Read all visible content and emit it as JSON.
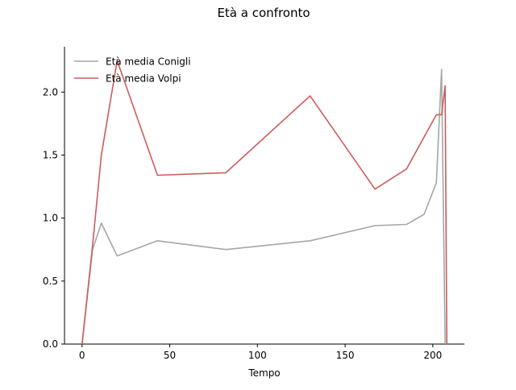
{
  "chart_data": {
    "type": "line",
    "title": "Età a confronto",
    "xlabel": "Tempo",
    "ylabel": "",
    "xlim": [
      -10,
      218
    ],
    "ylim": [
      0,
      2.36
    ],
    "x_ticks": [
      0,
      50,
      100,
      150,
      200
    ],
    "y_ticks": [
      0.0,
      0.5,
      1.0,
      1.5,
      2.0
    ],
    "x_tick_labels": [
      "0",
      "50",
      "100",
      "150",
      "200"
    ],
    "y_tick_labels": [
      "0.0",
      "0.5",
      "1.0",
      "1.5",
      "2.0"
    ],
    "grid": false,
    "legend_position": "top-left",
    "series": [
      {
        "name": "Età media Conigli",
        "color": "#a6a6a6",
        "points": [
          [
            0,
            0.0
          ],
          [
            6,
            0.75
          ],
          [
            11,
            0.96
          ],
          [
            20,
            0.7
          ],
          [
            43,
            0.82
          ],
          [
            82,
            0.75
          ],
          [
            130,
            0.82
          ],
          [
            167,
            0.94
          ],
          [
            185,
            0.95
          ],
          [
            195,
            1.03
          ],
          [
            202,
            1.28
          ],
          [
            205,
            2.18
          ],
          [
            207,
            0.0
          ]
        ]
      },
      {
        "name": "Età media Volpi",
        "color": "#cd5c5c",
        "points": [
          [
            0,
            0.0
          ],
          [
            6,
            0.78
          ],
          [
            11,
            1.5
          ],
          [
            20,
            2.25
          ],
          [
            43,
            1.34
          ],
          [
            82,
            1.36
          ],
          [
            130,
            1.97
          ],
          [
            167,
            1.23
          ],
          [
            185,
            1.39
          ],
          [
            202,
            1.82
          ],
          [
            205,
            1.82
          ],
          [
            207,
            2.05
          ],
          [
            208,
            0.0
          ]
        ]
      }
    ]
  }
}
